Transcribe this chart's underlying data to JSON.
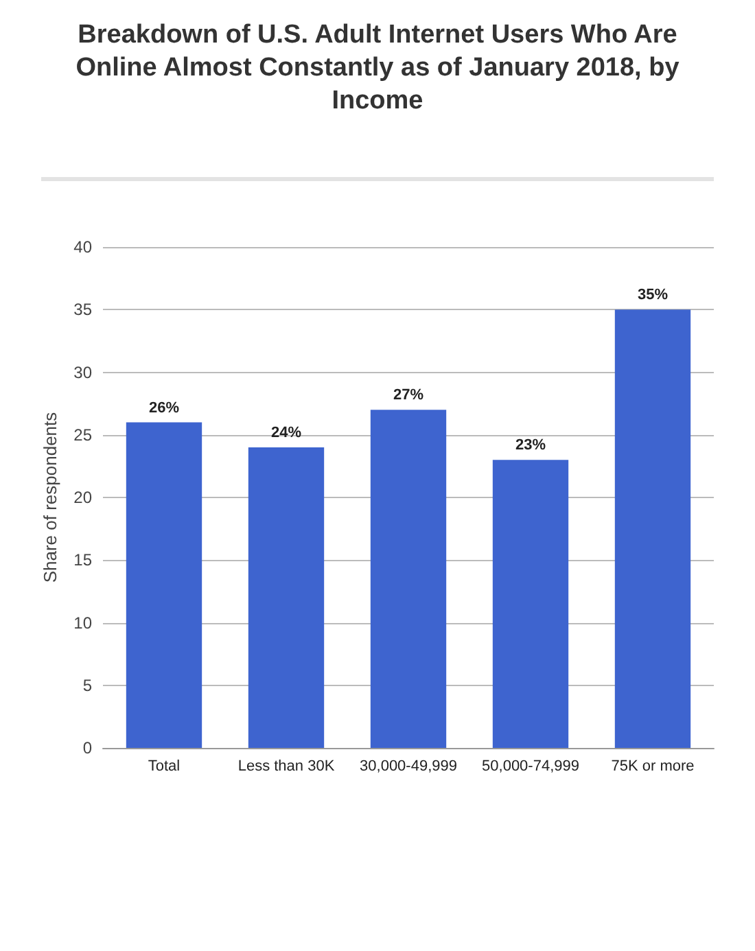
{
  "chart_data": {
    "type": "bar",
    "title": "Breakdown of U.S. Adult Internet Users Who Are Online Almost Constantly as of January 2018, by Income",
    "ylabel": "Share of respondents",
    "categories": [
      "Total",
      "Less than 30K",
      "30,000-49,999",
      "50,000-74,999",
      "75K or more"
    ],
    "values": [
      26,
      24,
      27,
      23,
      35
    ],
    "value_labels": [
      "26%",
      "24%",
      "27%",
      "23%",
      "35%"
    ],
    "color": "#3e64cf",
    "ylim": [
      0,
      40
    ],
    "yticks": [
      0,
      5,
      10,
      15,
      20,
      25,
      30,
      35,
      40
    ],
    "grid": "y"
  }
}
